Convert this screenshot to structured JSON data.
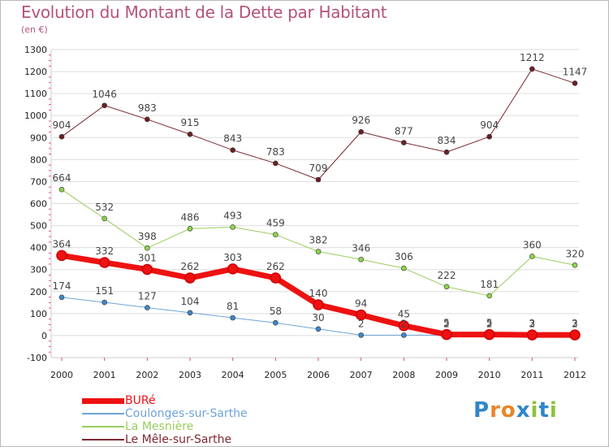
{
  "header": {
    "title": "Evolution du Montant de la Dette par Habitant",
    "subtitle": "(en €)"
  },
  "logo": {
    "text": "Proxiti",
    "letters": [
      {
        "ch": "P",
        "color": "#2f86c8"
      },
      {
        "ch": "r",
        "color": "#e8862a"
      },
      {
        "ch": "o",
        "color": "#e8862a"
      },
      {
        "ch": "x",
        "color": "#2f86c8"
      },
      {
        "ch": "i",
        "color": "#8ec23a"
      },
      {
        "ch": "t",
        "color": "#2f86c8"
      },
      {
        "ch": "i",
        "color": "#8ec23a"
      }
    ]
  },
  "colors": {
    "title": "#b5527a",
    "axis_text": "#222222",
    "grid": "#dddddd",
    "tick_marks": "#e8436b",
    "label_text": "#444444"
  },
  "chart_data": {
    "type": "line",
    "title": "Evolution du Montant de la Dette par Habitant",
    "ylabel": "(en €)",
    "xlabel": "",
    "x": [
      "2000",
      "2001",
      "2002",
      "2003",
      "2004",
      "2005",
      "2006",
      "2007",
      "2008",
      "2009",
      "2010",
      "2011",
      "2012"
    ],
    "ylim": [
      -100,
      1300
    ],
    "yticks": [
      -100,
      0,
      100,
      200,
      300,
      400,
      500,
      600,
      700,
      800,
      900,
      1000,
      1100,
      1200,
      1300
    ],
    "grid": true,
    "legend_position": "bottom-left",
    "series": [
      {
        "name": "Le Mêle-sur-Sarthe",
        "color": "#7b2a30",
        "marker_fill": "#6a1f25",
        "width": 1,
        "values": [
          904,
          1046,
          983,
          915,
          843,
          783,
          709,
          926,
          877,
          834,
          904,
          1212,
          1147
        ],
        "labels": [
          "904",
          "1046",
          "983",
          "915",
          "843",
          "783",
          "709",
          "926",
          "877",
          "834",
          "904",
          "1212",
          "1147"
        ]
      },
      {
        "name": "La Mesnière",
        "color": "#9acd5e",
        "marker_fill": "#8cd44a",
        "width": 1,
        "values": [
          664,
          532,
          398,
          486,
          493,
          459,
          382,
          346,
          306,
          222,
          181,
          360,
          320
        ],
        "labels": [
          "664",
          "532",
          "398",
          "486",
          "493",
          "459",
          "382",
          "346",
          "306",
          "222",
          "181",
          "360",
          "320"
        ]
      },
      {
        "name": "Coulonges-sur-Sarthe",
        "color": "#6fa4d6",
        "marker_fill": "#3f86c9",
        "width": 1,
        "values": [
          174,
          151,
          127,
          104,
          81,
          58,
          30,
          2,
          2,
          2,
          2,
          2,
          2
        ],
        "labels": [
          "174",
          "151",
          "127",
          "104",
          "81",
          "58",
          "30",
          "2",
          "2",
          "2",
          "2",
          "2",
          "2"
        ]
      },
      {
        "name": "BURé",
        "color": "#ee1111",
        "marker_fill": "#ee1111",
        "width": 7,
        "values": [
          364,
          332,
          301,
          262,
          303,
          262,
          140,
          94,
          45,
          5,
          5,
          3,
          3
        ],
        "labels": [
          "364",
          "332",
          "301",
          "262",
          "303",
          "262",
          "140",
          "94",
          "45",
          "5",
          "5",
          "3",
          "3"
        ]
      }
    ]
  },
  "legend": [
    {
      "name": "BURé",
      "color": "#ee1111",
      "width": 7
    },
    {
      "name": "Coulonges-sur-Sarthe",
      "color": "#6fa4d6",
      "width": 2
    },
    {
      "name": "La Mesnière",
      "color": "#9acd5e",
      "width": 2
    },
    {
      "name": "Le Mêle-sur-Sarthe",
      "color": "#7b2a30",
      "width": 2
    }
  ]
}
